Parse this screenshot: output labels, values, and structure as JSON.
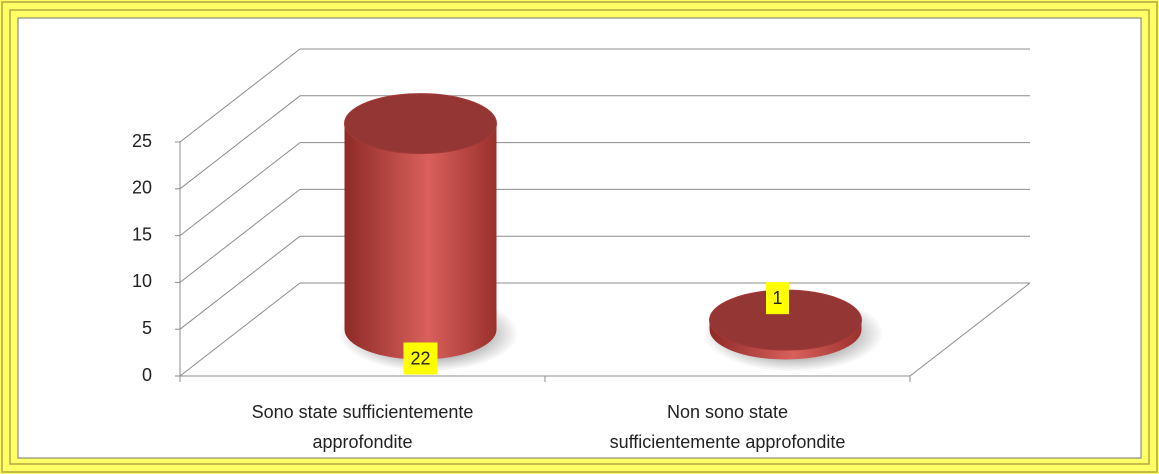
{
  "chart_data": {
    "type": "bar3d",
    "categories": [
      [
        "Sono state sufficientemente",
        "approfondite"
      ],
      [
        "Non sono state",
        "sufficientemente approfondite"
      ]
    ],
    "values": [
      22,
      1
    ],
    "color": "#c0504d",
    "ylim": [
      0,
      25
    ],
    "yticks": [
      0,
      5,
      10,
      15,
      20,
      25
    ],
    "grid": true
  }
}
